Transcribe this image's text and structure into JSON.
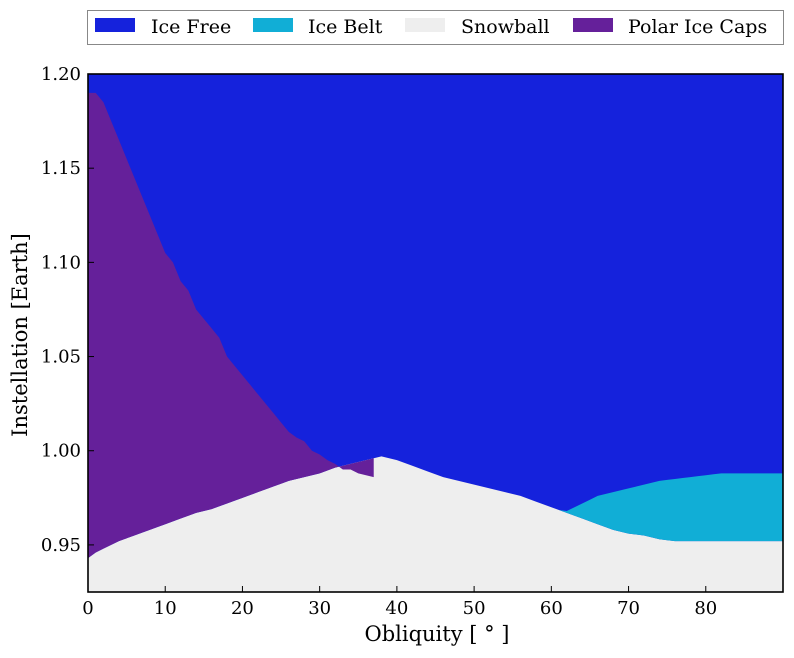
{
  "chart_data": {
    "type": "area",
    "title": "",
    "xlabel": "Obliquity [$^\\circ$]",
    "xlabel_display": "Obliquity [ ° ]",
    "ylabel": "Instellation [Earth]",
    "xlim": [
      0,
      90
    ],
    "ylim": [
      0.925,
      1.2
    ],
    "x_ticks": [
      0,
      10,
      20,
      30,
      40,
      50,
      60,
      70,
      80
    ],
    "x_tick_labels": [
      "0",
      "10",
      "20",
      "30",
      "40",
      "50",
      "60",
      "70",
      "80"
    ],
    "y_ticks": [
      0.95,
      1.0,
      1.05,
      1.1,
      1.15,
      1.2
    ],
    "y_tick_labels": [
      "0.95",
      "1.00",
      "1.05",
      "1.10",
      "1.15",
      "1.20"
    ],
    "grid": false,
    "legend_position": "top, outside plot",
    "series": [
      {
        "name": "Ice Free",
        "color": "#1522dc",
        "region": "above the upper boundary"
      },
      {
        "name": "Ice Belt",
        "color": "#11aed6",
        "region": "between the middle and upper boundary, obliquity above ~60"
      },
      {
        "name": "Snowball",
        "color": "#eeeeee",
        "region": "below the lower boundary"
      },
      {
        "name": "Polar Ice Caps",
        "color": "#65209a",
        "region": "between the lower and upper boundary, obliquity below ~37"
      }
    ],
    "boundaries": {
      "ice_free_lower_edge": [
        [
          0,
          1.19
        ],
        [
          1,
          1.19
        ],
        [
          2,
          1.185
        ],
        [
          3,
          1.175
        ],
        [
          4,
          1.165
        ],
        [
          5,
          1.155
        ],
        [
          6,
          1.145
        ],
        [
          7,
          1.135
        ],
        [
          8,
          1.125
        ],
        [
          9,
          1.115
        ],
        [
          10,
          1.105
        ],
        [
          11,
          1.1
        ],
        [
          12,
          1.09
        ],
        [
          13,
          1.085
        ],
        [
          14,
          1.075
        ],
        [
          15,
          1.07
        ],
        [
          16,
          1.065
        ],
        [
          17,
          1.06
        ],
        [
          18,
          1.05
        ],
        [
          19,
          1.045
        ],
        [
          20,
          1.04
        ],
        [
          21,
          1.035
        ],
        [
          22,
          1.03
        ],
        [
          23,
          1.025
        ],
        [
          24,
          1.02
        ],
        [
          25,
          1.015
        ],
        [
          26,
          1.01
        ],
        [
          27,
          1.007
        ],
        [
          28,
          1.005
        ],
        [
          29,
          1.0
        ],
        [
          30,
          0.998
        ],
        [
          31,
          0.995
        ],
        [
          32,
          0.993
        ],
        [
          33,
          0.99
        ],
        [
          34,
          0.99
        ],
        [
          35,
          0.988
        ],
        [
          36,
          0.987
        ],
        [
          38,
          0.985
        ],
        [
          40,
          0.983
        ],
        [
          42,
          0.98
        ],
        [
          44,
          0.978
        ],
        [
          46,
          0.976
        ],
        [
          48,
          0.974
        ],
        [
          50,
          0.972
        ],
        [
          52,
          0.971
        ],
        [
          54,
          0.97
        ],
        [
          56,
          0.969
        ],
        [
          58,
          0.968
        ],
        [
          60,
          0.967
        ],
        [
          61,
          0.967
        ],
        [
          62,
          0.968
        ],
        [
          63,
          0.97
        ],
        [
          64,
          0.972
        ],
        [
          66,
          0.976
        ],
        [
          68,
          0.978
        ],
        [
          70,
          0.98
        ],
        [
          72,
          0.982
        ],
        [
          74,
          0.984
        ],
        [
          76,
          0.985
        ],
        [
          78,
          0.986
        ],
        [
          80,
          0.987
        ],
        [
          82,
          0.988
        ],
        [
          84,
          0.988
        ],
        [
          86,
          0.988
        ],
        [
          88,
          0.988
        ],
        [
          90,
          0.988
        ]
      ],
      "snowball_upper_edge": [
        [
          0,
          0.943
        ],
        [
          1,
          0.946
        ],
        [
          2,
          0.948
        ],
        [
          4,
          0.952
        ],
        [
          6,
          0.955
        ],
        [
          8,
          0.958
        ],
        [
          10,
          0.961
        ],
        [
          12,
          0.964
        ],
        [
          14,
          0.967
        ],
        [
          16,
          0.969
        ],
        [
          18,
          0.972
        ],
        [
          20,
          0.975
        ],
        [
          22,
          0.978
        ],
        [
          24,
          0.981
        ],
        [
          26,
          0.984
        ],
        [
          28,
          0.986
        ],
        [
          30,
          0.988
        ],
        [
          32,
          0.991
        ],
        [
          34,
          0.993
        ],
        [
          36,
          0.995
        ],
        [
          38,
          0.997
        ],
        [
          39,
          0.996
        ],
        [
          40,
          0.995
        ],
        [
          42,
          0.992
        ],
        [
          44,
          0.989
        ],
        [
          46,
          0.986
        ],
        [
          48,
          0.984
        ],
        [
          50,
          0.982
        ],
        [
          52,
          0.98
        ],
        [
          54,
          0.978
        ],
        [
          56,
          0.976
        ],
        [
          58,
          0.973
        ],
        [
          60,
          0.97
        ],
        [
          62,
          0.967
        ],
        [
          64,
          0.964
        ],
        [
          66,
          0.961
        ],
        [
          68,
          0.958
        ],
        [
          70,
          0.956
        ],
        [
          72,
          0.955
        ],
        [
          74,
          0.953
        ],
        [
          76,
          0.952
        ],
        [
          80,
          0.952
        ],
        [
          84,
          0.952
        ],
        [
          90,
          0.952
        ]
      ],
      "polar_caps_max_obliquity": 37,
      "ice_belt_min_obliquity": 60
    }
  }
}
